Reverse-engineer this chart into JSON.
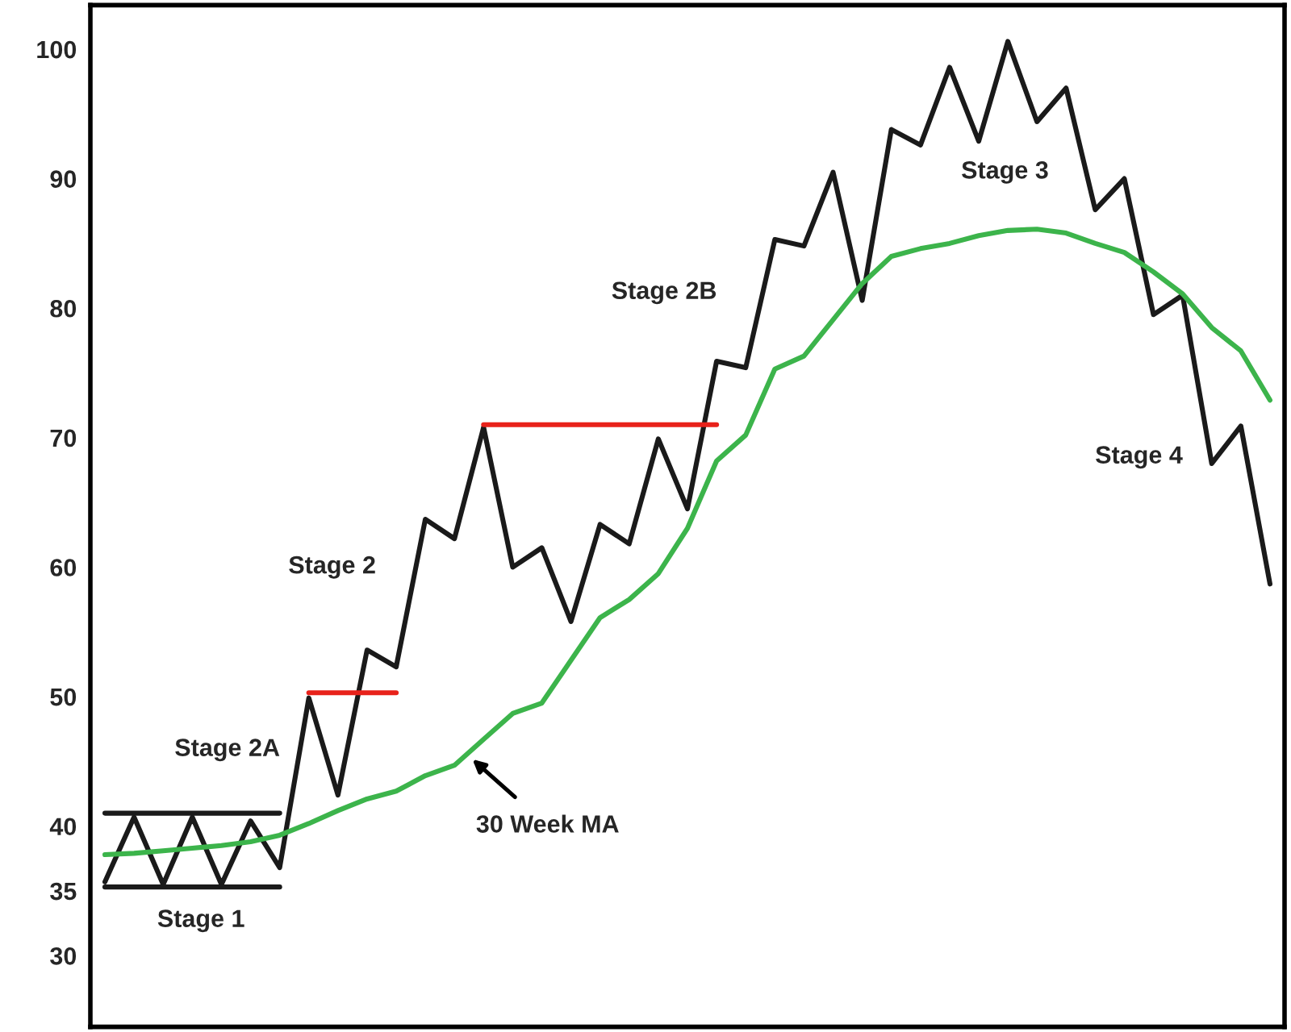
{
  "chart_data": {
    "type": "line",
    "categories": [
      null,
      null,
      null,
      null,
      null,
      null,
      null,
      null,
      null,
      null,
      null,
      null,
      null,
      null,
      null,
      null,
      null,
      null,
      null,
      null,
      null,
      null,
      null,
      null,
      null,
      null,
      null,
      null,
      null,
      null,
      null,
      null,
      null,
      null,
      null,
      null,
      null,
      null,
      null,
      null,
      null
    ],
    "series": [
      {
        "color": "#1a1a1a",
        "values": [
          35.7,
          40.7,
          35.5,
          40.7,
          35.5,
          40.4,
          36.8,
          49.9,
          42.4,
          53.6,
          52.3,
          63.7,
          62.2,
          70.8,
          60.0,
          61.5,
          55.8,
          63.3,
          61.8,
          69.9,
          64.5,
          75.9,
          75.4,
          85.3,
          84.8,
          90.5,
          80.6,
          93.8,
          92.6,
          98.6,
          92.9,
          100.6,
          94.4,
          97.0,
          87.6,
          90.0,
          79.5,
          81.0,
          68.0,
          70.9,
          58.7
        ]
      },
      {
        "color": "#3cb44b",
        "values": [
          37.8,
          37.9,
          38.1,
          38.3,
          38.5,
          38.8,
          39.3,
          40.2,
          41.2,
          42.1,
          42.7,
          43.9,
          44.7,
          46.7,
          48.7,
          49.5,
          52.8,
          56.1,
          57.5,
          59.5,
          63.0,
          68.2,
          70.2,
          75.3,
          76.3,
          79.1,
          81.9,
          84.0,
          84.6,
          85.0,
          85.6,
          86.0,
          86.1,
          85.8,
          85.0,
          84.3,
          82.8,
          81.1,
          78.5,
          76.7,
          72.9
        ]
      },
      {
        "color": "#1a1a1a",
        "values": [
          41.0,
          41.0,
          41.0,
          41.0,
          41.0,
          41.0,
          41.0,
          null,
          null,
          null,
          null,
          null,
          null,
          null,
          null,
          null,
          null,
          null,
          null,
          null,
          null,
          null,
          null,
          null,
          null,
          null,
          null,
          null,
          null,
          null,
          null,
          null,
          null,
          null,
          null,
          null,
          null,
          null,
          null,
          null,
          null
        ]
      },
      {
        "color": "#1a1a1a",
        "values": [
          35.3,
          35.3,
          35.3,
          35.3,
          35.3,
          35.3,
          35.3,
          null,
          null,
          null,
          null,
          null,
          null,
          null,
          null,
          null,
          null,
          null,
          null,
          null,
          null,
          null,
          null,
          null,
          null,
          null,
          null,
          null,
          null,
          null,
          null,
          null,
          null,
          null,
          null,
          null,
          null,
          null,
          null,
          null,
          null
        ]
      },
      {
        "color": "#e8221b",
        "values": [
          null,
          null,
          null,
          null,
          null,
          null,
          null,
          50.3,
          50.3,
          50.3,
          50.3,
          null,
          null,
          null,
          null,
          null,
          null,
          null,
          null,
          null,
          null,
          null,
          null,
          null,
          null,
          null,
          null,
          null,
          null,
          null,
          null,
          null,
          null,
          null,
          null,
          null,
          null,
          null,
          null,
          null,
          null
        ]
      },
      {
        "color": "#e8221b",
        "values": [
          null,
          null,
          null,
          null,
          null,
          null,
          null,
          null,
          null,
          null,
          null,
          null,
          null,
          71.0,
          71.0,
          71.0,
          71.0,
          71.0,
          71.0,
          71.0,
          71.0,
          71.0,
          null,
          null,
          null,
          null,
          null,
          null,
          null,
          null,
          null,
          null,
          null,
          null,
          null,
          null,
          null,
          null,
          null,
          null,
          null
        ]
      }
    ],
    "annotations": [
      "Stage 1",
      "Stage 2A",
      "Stage 2",
      "Stage 2B",
      "Stage 3",
      "Stage 4",
      "30 Week MA"
    ],
    "ylim": [
      24.5,
      103.4
    ],
    "yticks": [
      30,
      35,
      40,
      50,
      60,
      70,
      80,
      90,
      100
    ],
    "tick_labels": "y",
    "marker": "none",
    "line_style": "solid"
  }
}
